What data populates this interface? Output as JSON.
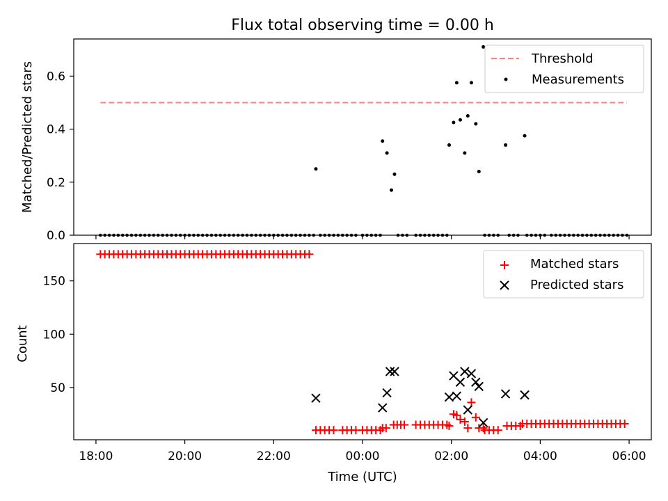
{
  "chart_data": [
    {
      "type": "scatter",
      "title": "Flux total observing time = 0.00 h",
      "xlabel": "",
      "ylabel": "Matched/Predicted stars",
      "xlim": [
        17.5,
        30.5
      ],
      "ylim": [
        0.0,
        0.74
      ],
      "yticks": [
        0.0,
        0.2,
        0.4,
        0.6
      ],
      "ytick_labels": [
        "0.0",
        "0.2",
        "0.4",
        "0.6"
      ],
      "legend_position": "top-right",
      "series": [
        {
          "name": "Threshold",
          "kind": "line",
          "style": "dashed",
          "color": "#ff7f7f",
          "x": [
            18.1,
            29.95
          ],
          "y": [
            0.5,
            0.5
          ]
        },
        {
          "name": "Measurements",
          "kind": "scatter",
          "marker": "dot",
          "color": "#000000",
          "x": [
            22.95,
            24.45,
            24.55,
            24.65,
            24.72,
            25.95,
            26.05,
            26.12,
            26.2,
            26.3,
            26.37,
            26.45,
            26.55,
            26.62,
            26.72,
            27.22,
            27.65
          ],
          "y": [
            0.25,
            0.355,
            0.31,
            0.17,
            0.23,
            0.34,
            0.425,
            0.575,
            0.435,
            0.31,
            0.45,
            0.575,
            0.42,
            0.24,
            0.71,
            0.34,
            0.375
          ],
          "zero_segments": [
            [
              18.1,
              22.95
            ],
            [
              23.05,
              23.85
            ],
            [
              24.0,
              24.45
            ],
            [
              24.8,
              25.05
            ],
            [
              25.2,
              25.5
            ],
            [
              25.6,
              25.95
            ],
            [
              26.75,
              27.1
            ],
            [
              27.3,
              27.55
            ],
            [
              27.7,
              28.15
            ],
            [
              28.25,
              29.95
            ]
          ],
          "zero_step_hours": 0.1
        }
      ]
    },
    {
      "type": "scatter",
      "title": "",
      "xlabel": "Time (UTC)",
      "ylabel": "Count",
      "xlim": [
        17.5,
        30.5
      ],
      "ylim": [
        1,
        185
      ],
      "yticks": [
        50,
        100,
        150
      ],
      "ytick_labels": [
        "50",
        "100",
        "150"
      ],
      "xticks": [
        18,
        20,
        22,
        24,
        26,
        28,
        30
      ],
      "xtick_labels": [
        "18:00",
        "20:00",
        "22:00",
        "00:00",
        "02:00",
        "04:00",
        "06:00"
      ],
      "legend_position": "top-right",
      "series": [
        {
          "name": "Matched stars",
          "kind": "scatter",
          "marker": "plus",
          "color": "#ff0000",
          "runs": [
            {
              "x_start": 18.1,
              "x_end": 22.8,
              "y": 175,
              "step_hours": 0.1
            },
            {
              "x_start": 22.95,
              "x_end": 23.35,
              "y": 10,
              "step_hours": 0.1
            },
            {
              "x_start": 24.0,
              "x_end": 24.4,
              "y": 10,
              "step_hours": 0.1
            },
            {
              "x_start": 24.45,
              "x_end": 24.6,
              "y": 12,
              "step_hours": 0.08
            },
            {
              "x_start": 24.7,
              "x_end": 24.95,
              "y": 15,
              "step_hours": 0.08
            },
            {
              "x_start": 25.2,
              "x_end": 25.9,
              "y": 15,
              "step_hours": 0.1
            },
            {
              "x_start": 26.75,
              "x_end": 27.1,
              "y": 10,
              "step_hours": 0.1
            },
            {
              "x_start": 27.25,
              "x_end": 27.55,
              "y": 14,
              "step_hours": 0.1
            },
            {
              "x_start": 27.6,
              "x_end": 29.9,
              "y": 16,
              "step_hours": 0.1
            }
          ],
          "x": [
            23.55,
            23.65,
            23.75,
            23.85,
            25.95,
            26.05,
            26.12,
            26.2,
            26.3,
            26.37,
            26.45,
            26.55,
            26.62,
            26.72
          ],
          "y": [
            10,
            10,
            10,
            10,
            14,
            25,
            24,
            20,
            18,
            12,
            36,
            22,
            12,
            12
          ]
        },
        {
          "name": "Predicted stars",
          "kind": "scatter",
          "marker": "x",
          "color": "#000000",
          "x": [
            22.95,
            24.45,
            24.55,
            24.62,
            24.72,
            25.95,
            26.05,
            26.12,
            26.2,
            26.3,
            26.37,
            26.45,
            26.55,
            26.62,
            26.72,
            27.22,
            27.65
          ],
          "y": [
            40,
            31,
            45,
            65,
            65,
            41,
            61,
            42,
            55,
            65,
            29,
            63,
            55,
            51,
            17,
            44,
            43
          ]
        }
      ]
    }
  ]
}
